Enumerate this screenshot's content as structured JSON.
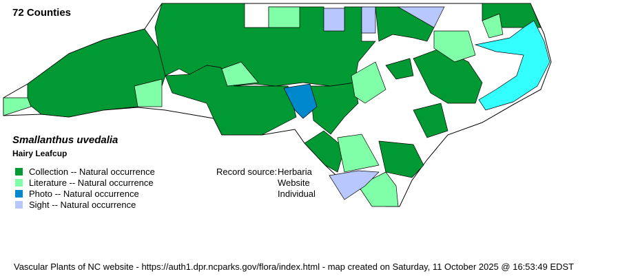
{
  "county_count": "72 Counties",
  "species": {
    "scientific_name": "Smallanthus uvedalia",
    "common_name": "Hairy Leafcup"
  },
  "legend": [
    {
      "label": "Collection -- Natural occurrence",
      "color": "#009933"
    },
    {
      "label": "Literature -- Natural occurrence",
      "color": "#80ffa8"
    },
    {
      "label": "Photo -- Natural occurrence",
      "color": "#0088cc"
    },
    {
      "label": "Sight -- Natural occurrence",
      "color": "#b8c8ff"
    }
  ],
  "record_source": {
    "label": "Record source:",
    "values": [
      "Herbaria",
      "Website",
      "Individual"
    ]
  },
  "water_color": "#33ffff",
  "footer": "Vascular Plants of NC website - https://auth1.dpr.ncparks.gov/flora/index.html - map created on Saturday, 11 October 2025 @ 16:53:49 EDST"
}
